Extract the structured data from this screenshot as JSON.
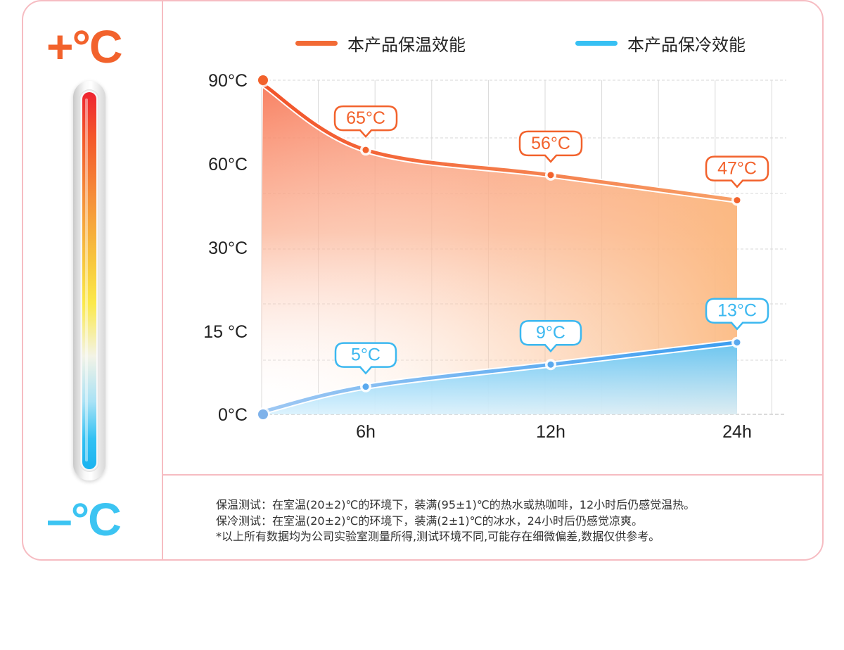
{
  "side_labels": {
    "hot": "+°C",
    "cold": "–°C"
  },
  "legend": [
    {
      "label": "本产品保温效能",
      "color": "#f26a35"
    },
    {
      "label": "本产品保冷效能",
      "color": "#37c0f3"
    }
  ],
  "chart_data": {
    "type": "line",
    "x": [
      0,
      6,
      12,
      24
    ],
    "xticks": [
      "6h",
      "12h",
      "24h"
    ],
    "yticks": [
      "90°C",
      "60°C",
      "30°C",
      "15 °C",
      "0°C"
    ],
    "series": [
      {
        "name": "本产品保温效能",
        "values": [
          90,
          65,
          56,
          47
        ],
        "labels": [
          "",
          "65°C",
          "56°C",
          "47°C"
        ],
        "color": "#f2622c"
      },
      {
        "name": "本产品保冷效能",
        "values": [
          0,
          5,
          9,
          13
        ],
        "labels": [
          "",
          "5°C",
          "9°C",
          "13°C"
        ],
        "color": "#3cb8f0"
      }
    ],
    "grid": true,
    "legend_position": "top"
  },
  "notes": [
    "保温测试：在室温(20±2)℃的环境下，装满(95±1)℃的热水或热咖啡，12小时后仍感觉温热。",
    "保冷测试：在室温(20±2)℃的环境下，装满(2±1)℃的冰水，24小时后仍感觉凉爽。",
    "*以上所有数据均为公司实验室测量所得,测试环境不同,可能存在细微偏差,数据仅供参考。"
  ]
}
